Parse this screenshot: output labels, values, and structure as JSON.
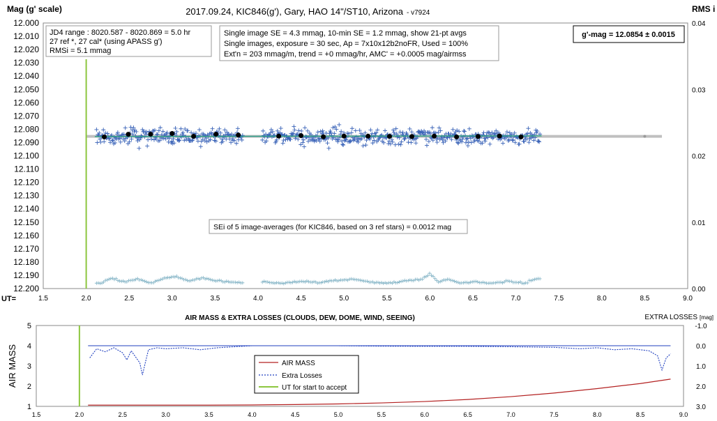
{
  "chart_data": [
    {
      "type": "scatter",
      "title": "2017.09.24,  KIC846(g'),  Gary,  HAO  14\"/ST10,  Arizona",
      "title_suffix": "- v7924",
      "ylabel": "Mag (g' scale)",
      "y2label": "RMS i",
      "xlabel": "UT=",
      "xlim": [
        1.5,
        9.0
      ],
      "ylim": [
        12.2,
        12.0
      ],
      "y2lim": [
        0.0,
        0.04
      ],
      "x_ticks": [
        "1.5",
        "2.0",
        "2.5",
        "3.0",
        "3.5",
        "4.0",
        "4.5",
        "5.0",
        "5.5",
        "6.0",
        "6.5",
        "7.0",
        "7.5",
        "8.0",
        "8.5",
        "9.0"
      ],
      "y_ticks": [
        "12.000",
        "12.010",
        "12.020",
        "12.030",
        "12.040",
        "12.050",
        "12.060",
        "12.070",
        "12.080",
        "12.090",
        "12.100",
        "12.110",
        "12.120",
        "12.130",
        "12.140",
        "12.150",
        "12.160",
        "12.170",
        "12.180",
        "12.190",
        "12.200"
      ],
      "y2_ticks": [
        "0.04",
        "0.03",
        "0.02",
        "0.01",
        "0.00"
      ],
      "legend": "none",
      "grid": false,
      "info_box_1": [
        "JD4 range : 8020.587 - 8020.869 =  5.0  hr",
        "27 ref *, 27 cal* (using APASS g')",
        "RMSi = 5.1 mmag"
      ],
      "info_box_2": [
        "Single image SE = 4.3 mmag, 10-min SE = 1.2 mmag, show 21-pt avgs",
        "Single images, exposure = 30 sec, Ap = 7x10x12b2noFR, Used = 100%",
        "Ext'n = 203 mmag/m, trend =  +0 mmag/hr, AMC' = +0.0005 mag/airmss"
      ],
      "gmag_label": "g'-mag = 12.0854 ± 0.0015",
      "sei_label": "SEi of 5 image-averages (for KIC846, based on 3 ref stars) = 0.0012 mag",
      "accept_ut": 2.0,
      "mean_mag": 12.0854,
      "series": [
        {
          "label_role": "single-image magnitudes",
          "color": "#3a63b8",
          "segments": [
            [
              2.12,
              3.82
            ],
            [
              4.05,
              7.28
            ]
          ],
          "mean": 12.0854,
          "scatter": 0.0043,
          "point_count": 620
        },
        {
          "label_role": "21-point averages",
          "color": "#000000",
          "x": [
            2.21,
            2.49,
            2.75,
            3.0,
            3.25,
            3.51,
            3.77,
            4.24,
            4.5,
            4.76,
            5.0,
            5.28,
            5.53,
            5.79,
            6.05,
            6.31,
            6.56,
            6.81,
            7.06
          ],
          "y": [
            12.0858,
            12.0838,
            12.0837,
            12.0832,
            12.0853,
            12.0837,
            12.0844,
            12.0852,
            12.0848,
            12.0857,
            12.0852,
            12.0852,
            12.0854,
            12.0855,
            12.0852,
            12.0858,
            12.0855,
            12.0851,
            12.0858
          ]
        },
        {
          "label_role": "trend line",
          "color": "#2fa08a",
          "x": [
            2.1,
            7.3
          ],
          "y": [
            12.0855,
            12.085
          ]
        },
        {
          "label_role": "RMS i (right axis)",
          "color": "#8ab8c9",
          "axis": "right",
          "segments": [
            [
              2.12,
              3.82
            ],
            [
              4.05,
              7.28
            ]
          ],
          "x": [
            2.15,
            2.3,
            2.45,
            2.6,
            2.75,
            2.9,
            3.05,
            3.2,
            3.35,
            3.5,
            3.65,
            3.8,
            4.1,
            4.3,
            4.5,
            4.7,
            4.9,
            5.1,
            5.3,
            5.5,
            5.7,
            5.9,
            6.0,
            6.1,
            6.2,
            6.35,
            6.5,
            6.7,
            6.9,
            7.1,
            7.25
          ],
          "y": [
            0.0008,
            0.0016,
            0.001,
            0.0014,
            0.0008,
            0.0015,
            0.0018,
            0.0011,
            0.0016,
            0.0012,
            0.001,
            0.0009,
            0.001,
            0.0008,
            0.0011,
            0.0009,
            0.0012,
            0.0014,
            0.001,
            0.0008,
            0.0011,
            0.0014,
            0.0022,
            0.001,
            0.0014,
            0.0008,
            0.001,
            0.0008,
            0.0011,
            0.0008,
            0.0015
          ]
        }
      ],
      "baseline_color": "#c0c0c0",
      "accept_color": "#8cc63f"
    },
    {
      "type": "line",
      "title": "AIR MASS & EXTRA LOSSES (CLOUDS, DEW, DOME, WIND, SEEING)",
      "ylabel": "AIR MASS",
      "y2label": "EXTRA LOSSES",
      "y2unit": "[mag]",
      "xlim": [
        1.5,
        9.0
      ],
      "ylim": [
        1,
        5
      ],
      "y2lim": [
        -1.0,
        3.0
      ],
      "x_ticks": [
        "1.5",
        "2.0",
        "2.5",
        "3.0",
        "3.5",
        "4.0",
        "4.5",
        "5.0",
        "5.5",
        "6.0",
        "6.5",
        "7.0",
        "7.5",
        "8.0",
        "8.5",
        "9.0"
      ],
      "y_ticks": [
        "1",
        "2",
        "3",
        "4",
        "5"
      ],
      "y2_ticks": [
        "-1.0",
        "0.0",
        "1.0",
        "2.0",
        "3.0"
      ],
      "legend": [
        "AIR MASS",
        "Extra Losses",
        "UT for start to accept"
      ],
      "legend_placement": "center",
      "accept_ut": 2.0,
      "series": [
        {
          "name": "AIR MASS",
          "color": "#b32020",
          "x": [
            2.1,
            2.5,
            3.0,
            3.5,
            4.0,
            4.5,
            5.0,
            5.5,
            6.0,
            6.5,
            7.0,
            7.5,
            8.0,
            8.5,
            8.85
          ],
          "y": [
            1.06,
            1.06,
            1.06,
            1.06,
            1.07,
            1.09,
            1.12,
            1.17,
            1.24,
            1.34,
            1.48,
            1.66,
            1.88,
            2.13,
            2.35
          ]
        },
        {
          "name": "Extra Losses",
          "color": "#1f3fbf",
          "x": [
            2.12,
            2.2,
            2.3,
            2.4,
            2.5,
            2.55,
            2.6,
            2.7,
            2.73,
            2.76,
            2.8,
            2.9,
            3.0,
            3.2,
            3.4,
            3.6,
            3.8,
            4.0,
            4.5,
            5.0,
            5.5,
            6.0,
            6.5,
            7.0,
            7.5,
            7.8,
            8.0,
            8.2,
            8.4,
            8.6,
            8.7,
            8.75,
            8.8,
            8.85
          ],
          "y": [
            0.6,
            0.15,
            0.3,
            0.1,
            0.35,
            0.7,
            0.25,
            0.85,
            1.45,
            0.9,
            0.2,
            0.1,
            0.15,
            0.1,
            0.2,
            0.1,
            0.05,
            0.0,
            0.0,
            0.0,
            0.02,
            0.03,
            0.03,
            0.05,
            0.08,
            0.15,
            0.1,
            0.2,
            0.15,
            0.25,
            0.5,
            1.2,
            0.6,
            0.4
          ]
        },
        {
          "name": "UT for start to accept",
          "color": "#8cc63f",
          "x": [
            2.0,
            2.0
          ],
          "y": [
            1,
            5
          ]
        }
      ]
    }
  ]
}
